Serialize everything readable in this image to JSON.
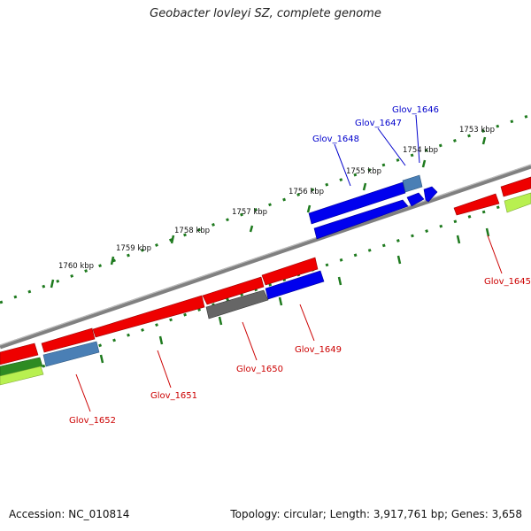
{
  "title": "Geobacter lovleyi SZ, complete genome",
  "accession": "Accession: NC_010814",
  "summary": "Topology: circular; Length: 3,917,761 bp; Genes: 3,658",
  "scale_labels": [
    {
      "text": "1753 kbp"
    },
    {
      "text": "1754 kbp"
    },
    {
      "text": "1755 kbp"
    },
    {
      "text": "1756 kbp"
    },
    {
      "text": "1757 kbp"
    },
    {
      "text": "1758 kbp"
    },
    {
      "text": "1759 kbp"
    },
    {
      "text": "1760 kbp"
    }
  ],
  "gene_labels": [
    {
      "text": "Glov_1646",
      "color": "#0000cc"
    },
    {
      "text": "Glov_1647",
      "color": "#0000cc"
    },
    {
      "text": "Glov_1648",
      "color": "#0000cc"
    },
    {
      "text": "Glov_1645",
      "color": "#cc0000"
    },
    {
      "text": "Glov_1649",
      "color": "#cc0000"
    },
    {
      "text": "Glov_1650",
      "color": "#cc0000"
    },
    {
      "text": "Glov_1651",
      "color": "#cc0000"
    },
    {
      "text": "Glov_1652",
      "color": "#cc0000"
    }
  ],
  "colors": {
    "backbone": "#808080",
    "tick": "#1e7a1e",
    "forward_gene": "#0000ee",
    "reverse_gene": "#ee0000",
    "highlight_gene": "#4a7fb5",
    "pseudo_gene": "#666666",
    "rna_green": "#2e8b22",
    "rna_lime": "#b8f050"
  }
}
